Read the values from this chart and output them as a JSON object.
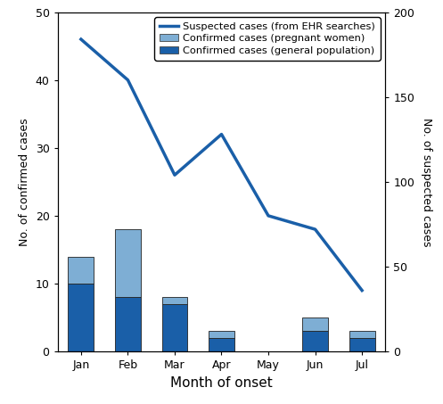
{
  "months": [
    "Jan",
    "Feb",
    "Mar",
    "Apr",
    "May",
    "Jun",
    "Jul"
  ],
  "confirmed_general": [
    10,
    8,
    7,
    2,
    0,
    3,
    2
  ],
  "confirmed_pregnant": [
    4,
    10,
    1,
    1,
    0,
    2,
    1
  ],
  "suspected_right_axis": [
    184,
    160,
    104,
    128,
    80,
    72,
    36
  ],
  "left_ylim": [
    0,
    50
  ],
  "right_ylim": [
    0,
    200
  ],
  "left_yticks": [
    0,
    10,
    20,
    30,
    40,
    50
  ],
  "right_yticks": [
    0,
    50,
    100,
    150,
    200
  ],
  "color_general": "#1a5fa8",
  "color_pregnant": "#7eaed4",
  "color_line": "#1a5fa8",
  "xlabel": "Month of onset",
  "ylabel_left": "No. of confirmed cases",
  "ylabel_right": "No. of suspected cases",
  "legend_line": "Suspected cases (from EHR searches)",
  "legend_pregnant": "Confirmed cases (pregnant women)",
  "legend_general": "Confirmed cases (general population)",
  "bar_width": 0.55,
  "line_width": 2.5
}
